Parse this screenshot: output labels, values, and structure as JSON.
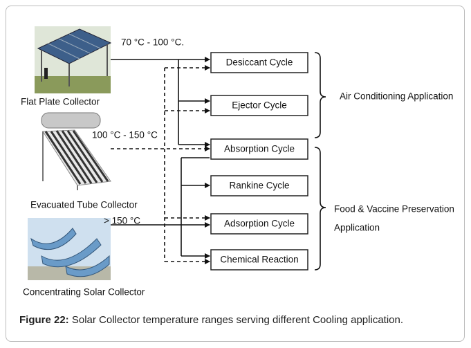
{
  "collectors": [
    {
      "label": "Flat Plate Collector",
      "temperature": "70 °C - 100 °C."
    },
    {
      "label": "Evacuated Tube Collector",
      "temperature": "100 °C - 150 °C"
    },
    {
      "label": "Concentrating Solar Collector",
      "temperature": "> 150 °C"
    }
  ],
  "cycles": [
    "Desiccant Cycle",
    "Ejector Cycle",
    "Absorption Cycle",
    "Rankine Cycle",
    "Adsorption Cycle",
    "Chemical Reaction"
  ],
  "applications": [
    {
      "lines": [
        "Air Conditioning Application"
      ]
    },
    {
      "lines": [
        "Food & Vaccine Preservation",
        "Application"
      ]
    }
  ],
  "caption": {
    "label": "Figure 22:",
    "text": "Solar Collector temperature ranges serving different Cooling application."
  }
}
